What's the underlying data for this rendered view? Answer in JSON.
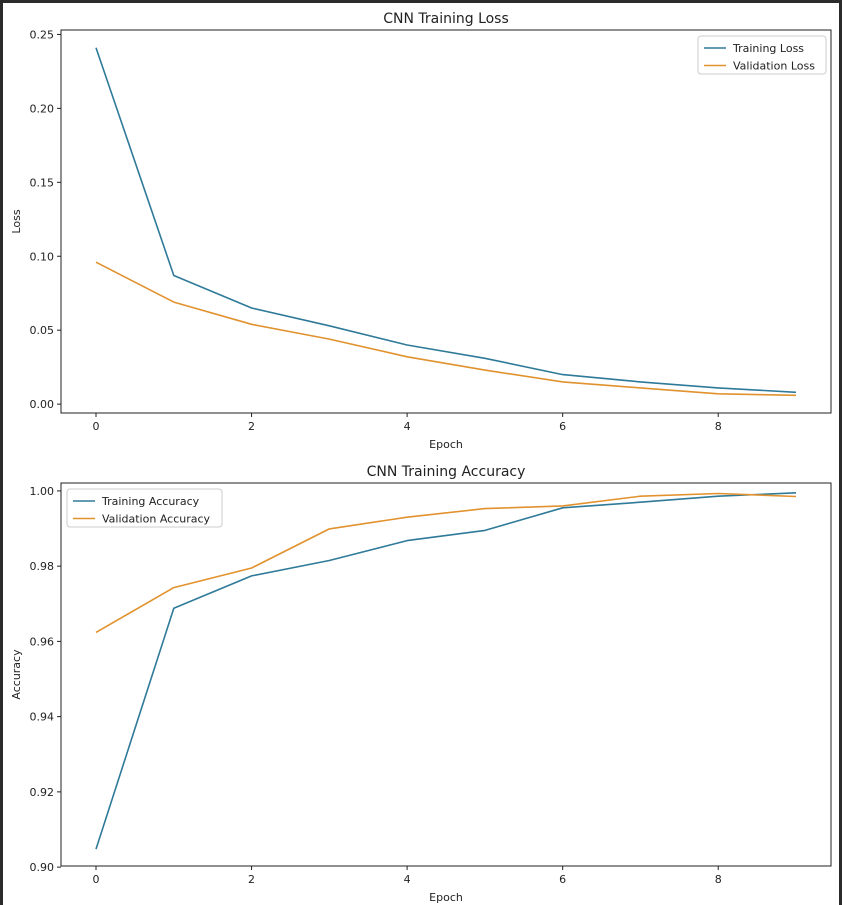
{
  "colors": {
    "training": "#2f7a99",
    "validation": "#e1922e"
  },
  "chart_data": [
    {
      "type": "line",
      "title": "CNN Training Loss",
      "xlabel": "Epoch",
      "ylabel": "Loss",
      "xlim": [
        -0.45,
        9.45
      ],
      "ylim": [
        -0.006,
        0.253
      ],
      "xticks": [
        0,
        2,
        4,
        6,
        8
      ],
      "yticks": [
        0.0,
        0.05,
        0.1,
        0.15,
        0.2,
        0.25
      ],
      "ytick_labels": [
        "0.00",
        "0.05",
        "0.10",
        "0.15",
        "0.20",
        "0.25"
      ],
      "legend_position": "top-right",
      "grid": false,
      "x": [
        0,
        1,
        2,
        3,
        4,
        5,
        6,
        7,
        8,
        9
      ],
      "series": [
        {
          "name": "Training Loss",
          "color": "#2f7a99",
          "values": [
            0.241,
            0.087,
            0.065,
            0.053,
            0.04,
            0.031,
            0.02,
            0.015,
            0.011,
            0.008
          ]
        },
        {
          "name": "Validation Loss",
          "color": "#e1922e",
          "values": [
            0.096,
            0.069,
            0.054,
            0.044,
            0.032,
            0.023,
            0.015,
            0.011,
            0.007,
            0.006
          ]
        }
      ]
    },
    {
      "type": "line",
      "title": "CNN Training Accuracy",
      "xlabel": "Epoch",
      "ylabel": "Accuracy",
      "xlim": [
        -0.45,
        9.45
      ],
      "ylim": [
        0.9003,
        1.0021
      ],
      "xticks": [
        0,
        2,
        4,
        6,
        8
      ],
      "yticks": [
        0.9,
        0.92,
        0.94,
        0.96,
        0.98,
        1.0
      ],
      "ytick_labels": [
        "0.90",
        "0.92",
        "0.94",
        "0.96",
        "0.98",
        "1.00"
      ],
      "legend_position": "top-left",
      "grid": false,
      "x": [
        0,
        1,
        2,
        3,
        4,
        5,
        6,
        7,
        8,
        9
      ],
      "series": [
        {
          "name": "Training Accuracy",
          "color": "#2f7a99",
          "values": [
            0.9048,
            0.9688,
            0.9774,
            0.9815,
            0.9868,
            0.9895,
            0.9955,
            0.997,
            0.9986,
            0.9995
          ]
        },
        {
          "name": "Validation Accuracy",
          "color": "#e1922e",
          "values": [
            0.9624,
            0.9743,
            0.9795,
            0.9899,
            0.993,
            0.9953,
            0.996,
            0.9986,
            0.9993,
            0.9985
          ]
        }
      ]
    }
  ]
}
